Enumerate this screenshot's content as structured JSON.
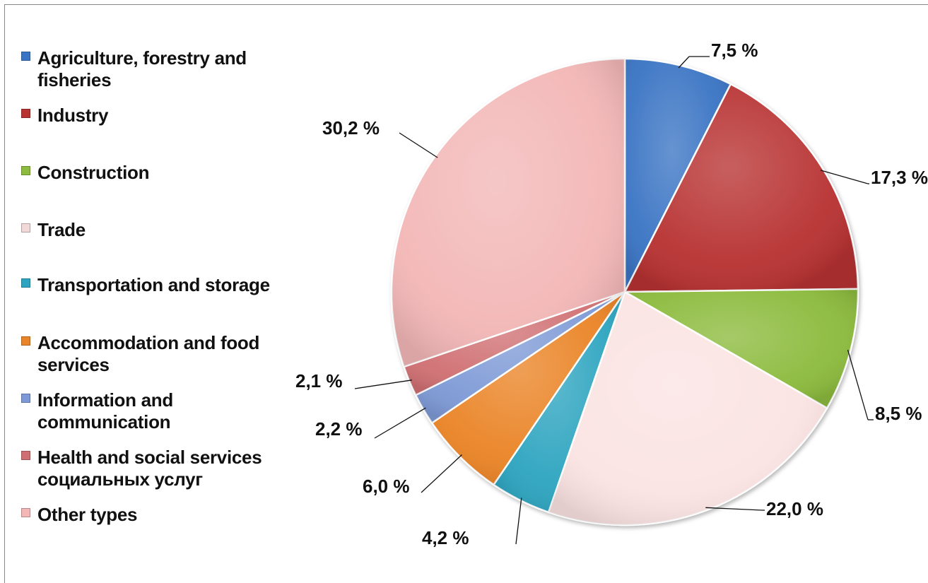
{
  "chart_data": {
    "type": "pie",
    "title": "",
    "series": [
      {
        "values": [
          7.5,
          17.3,
          8.5,
          22.0,
          4.2,
          6.0,
          2.2,
          2.1,
          30.2
        ],
        "labels": [
          "7,5 %",
          "17,3 %",
          "8,5 %",
          "22,0 %",
          "4,2 %",
          "6,0 %",
          "2,2 %",
          "2,1 %",
          "30,2 %"
        ]
      }
    ],
    "categories": [
      "Agriculture, forestry and fisheries",
      "Industry",
      "Construction",
      "Trade",
      "Transportation and storage",
      "Accommodation and food services",
      "Information and communication",
      "Health and social services социальных услуг",
      "Other types"
    ],
    "colors": [
      "#3a74c4",
      "#b83232",
      "#8cbb3e",
      "#fbe3e3",
      "#2ea5c0",
      "#ea8428",
      "#7e9ad6",
      "#d06f73",
      "#f3b7b7"
    ],
    "start_angle_deg": 0,
    "direction": "clockwise",
    "legend_position": "left"
  },
  "legend": [
    {
      "lines": [
        "Agriculture, forestry and",
        "fisheries"
      ],
      "color": "#3a74c4"
    },
    {
      "lines": [
        "Industry"
      ],
      "color": "#b83232"
    },
    {
      "lines": [
        "Construction"
      ],
      "color": "#8cbb3e"
    },
    {
      "lines": [
        "Trade"
      ],
      "color": "#f1d9d9"
    },
    {
      "lines": [
        "Transportation and storage"
      ],
      "color": "#2ea5c0"
    },
    {
      "lines": [
        "Accommodation and food",
        "services"
      ],
      "color": "#ea8428"
    },
    {
      "lines": [
        "Information and",
        "communication"
      ],
      "color": "#7e9ad6"
    },
    {
      "lines": [
        "Health and social services",
        "социальных услуг"
      ],
      "color": "#d06f73"
    },
    {
      "lines": [
        "Other types"
      ],
      "color": "#f3b7b7"
    }
  ]
}
